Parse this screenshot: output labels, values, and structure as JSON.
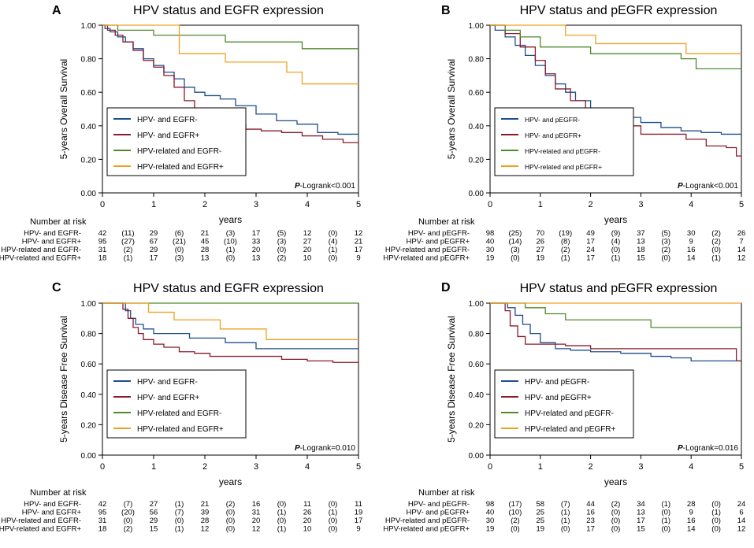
{
  "colors": {
    "hpv_neg_egfr_neg": "#1f4e8c",
    "hpv_neg_egfr_pos": "#8b1a2b",
    "hpv_rel_egfr_neg": "#4f8a2b",
    "hpv_rel_egfr_pos": "#f0a020"
  },
  "chart_data": [
    {
      "type": "line",
      "panel_letter": "A",
      "title": "HPV status and EGFR expression",
      "xlabel": "years",
      "ylabel": "5-years Overall Survival",
      "xlim": [
        0,
        5
      ],
      "ylim": [
        0,
        1
      ],
      "xticks": [
        "0",
        "1",
        "2",
        "3",
        "4",
        "5"
      ],
      "yticks": [
        "0.00",
        "0.20",
        "0.40",
        "0.60",
        "0.80",
        "1.00"
      ],
      "pvalue_prefix": "P",
      "pvalue_text": "-Logrank<0.001",
      "legend_placement": "bottom-left",
      "series": [
        {
          "name": "HPV- and EGFR-",
          "color_key": "hpv_neg_egfr_neg",
          "x": [
            0,
            0.05,
            0.15,
            0.3,
            0.45,
            0.6,
            0.8,
            1.0,
            1.2,
            1.4,
            1.6,
            1.8,
            2.0,
            2.3,
            2.6,
            3.0,
            3.4,
            3.8,
            4.2,
            4.6,
            5.0
          ],
          "y": [
            1.0,
            0.98,
            0.96,
            0.93,
            0.9,
            0.86,
            0.8,
            0.76,
            0.72,
            0.68,
            0.63,
            0.6,
            0.58,
            0.56,
            0.52,
            0.47,
            0.43,
            0.41,
            0.36,
            0.35,
            0.35
          ]
        },
        {
          "name": "HPV- and EGFR+",
          "color_key": "hpv_neg_egfr_pos",
          "x": [
            0,
            0.1,
            0.25,
            0.4,
            0.6,
            0.8,
            1.0,
            1.2,
            1.4,
            1.6,
            1.8,
            2.0,
            2.2,
            2.5,
            2.8,
            3.1,
            3.5,
            3.9,
            4.3,
            4.7,
            5.0
          ],
          "y": [
            1.0,
            0.97,
            0.94,
            0.9,
            0.85,
            0.79,
            0.75,
            0.7,
            0.63,
            0.55,
            0.5,
            0.47,
            0.45,
            0.41,
            0.38,
            0.37,
            0.36,
            0.34,
            0.32,
            0.3,
            0.29
          ]
        },
        {
          "name": "HPV-related and EGFR-",
          "color_key": "hpv_rel_egfr_neg",
          "x": [
            0,
            0.3,
            1.0,
            1.8,
            2.4,
            3.2,
            3.9,
            5.0
          ],
          "y": [
            1.0,
            0.97,
            0.94,
            0.94,
            0.9,
            0.9,
            0.86,
            0.86
          ]
        },
        {
          "name": "HPV-related and EGFR+",
          "color_key": "hpv_rel_egfr_pos",
          "x": [
            0,
            1.1,
            1.5,
            2.4,
            3.6,
            3.9,
            5.0
          ],
          "y": [
            1.0,
            1.0,
            0.83,
            0.78,
            0.72,
            0.65,
            0.65
          ]
        }
      ],
      "risk_table": {
        "header": "Number at risk",
        "rows": [
          {
            "label": "HPV- and EGFR-",
            "values": [
              "42",
              "(11)",
              "29",
              "(6)",
              "21",
              "(3)",
              "17",
              "(5)",
              "12",
              "(0)",
              "12"
            ]
          },
          {
            "label": "HPV- and EGFR+",
            "values": [
              "95",
              "(27)",
              "67",
              "(21)",
              "45",
              "(10)",
              "33",
              "(3)",
              "27",
              "(4)",
              "21"
            ]
          },
          {
            "label": "HPV-related and EGFR-",
            "values": [
              "31",
              "(2)",
              "29",
              "(0)",
              "28",
              "(1)",
              "20",
              "(0)",
              "20",
              "(1)",
              "17"
            ]
          },
          {
            "label": "HPV-related and EGFR+",
            "values": [
              "18",
              "(1)",
              "17",
              "(3)",
              "13",
              "(0)",
              "13",
              "(2)",
              "10",
              "(0)",
              "9"
            ]
          }
        ]
      }
    },
    {
      "type": "line",
      "panel_letter": "B",
      "title": "HPV status and pEGFR expression",
      "xlabel": "years",
      "ylabel": "5-years Overall Survival",
      "xlim": [
        0,
        5
      ],
      "ylim": [
        0,
        1
      ],
      "xticks": [
        "0",
        "1",
        "2",
        "3",
        "4",
        "5"
      ],
      "yticks": [
        "0.00",
        "0.20",
        "0.40",
        "0.60",
        "0.80",
        "1.00"
      ],
      "pvalue_prefix": "P",
      "pvalue_text": "-Logrank<0.001",
      "legend_placement": "bottom-left",
      "series": [
        {
          "name": "HPV- and pEGFR-",
          "color_key": "hpv_neg_egfr_neg",
          "x": [
            0,
            0.1,
            0.3,
            0.5,
            0.7,
            0.9,
            1.1,
            1.3,
            1.5,
            1.7,
            2.0,
            2.3,
            2.6,
            3.0,
            3.4,
            3.8,
            4.2,
            4.6,
            5.0
          ],
          "y": [
            1.0,
            0.97,
            0.93,
            0.88,
            0.82,
            0.76,
            0.7,
            0.65,
            0.6,
            0.55,
            0.5,
            0.47,
            0.45,
            0.42,
            0.39,
            0.37,
            0.36,
            0.35,
            0.35
          ]
        },
        {
          "name": "HPV- and pEGFR+",
          "color_key": "hpv_neg_egfr_pos",
          "x": [
            0,
            0.3,
            0.6,
            0.9,
            1.1,
            1.3,
            1.6,
            1.9,
            2.2,
            2.6,
            3.0,
            3.5,
            3.9,
            4.3,
            4.7,
            4.9,
            5.0
          ],
          "y": [
            1.0,
            0.95,
            0.87,
            0.79,
            0.71,
            0.62,
            0.55,
            0.45,
            0.43,
            0.4,
            0.35,
            0.35,
            0.32,
            0.28,
            0.27,
            0.22,
            0.2
          ]
        },
        {
          "name": "HPV-related and pEGFR-",
          "color_key": "hpv_rel_egfr_neg",
          "x": [
            0,
            0.3,
            0.6,
            1.0,
            1.6,
            2.0,
            3.0,
            3.8,
            4.1,
            5.0
          ],
          "y": [
            1.0,
            0.97,
            0.93,
            0.87,
            0.87,
            0.83,
            0.83,
            0.8,
            0.74,
            0.74
          ]
        },
        {
          "name": "HPV-related and pEGFR+",
          "color_key": "hpv_rel_egfr_pos",
          "x": [
            0,
            1.0,
            1.5,
            2.1,
            3.9,
            5.0
          ],
          "y": [
            1.0,
            1.0,
            0.94,
            0.89,
            0.83,
            0.83
          ]
        }
      ],
      "risk_table": {
        "header": "Number at risk",
        "rows": [
          {
            "label": "HPV- and pEGFR-",
            "values": [
              "98",
              "(25)",
              "70",
              "(19)",
              "49",
              "(9)",
              "37",
              "(5)",
              "30",
              "(2)",
              "26"
            ]
          },
          {
            "label": "HPV- and pEGFR+",
            "values": [
              "40",
              "(14)",
              "26",
              "(8)",
              "17",
              "(4)",
              "13",
              "(3)",
              "9",
              "(2)",
              "7"
            ]
          },
          {
            "label": "HPV-related and pEGFR-",
            "values": [
              "30",
              "(3)",
              "27",
              "(2)",
              "24",
              "(0)",
              "18",
              "(2)",
              "16",
              "(0)",
              "14"
            ]
          },
          {
            "label": "HPV-related and pEGFR+",
            "values": [
              "19",
              "(0)",
              "19",
              "(1)",
              "17",
              "(1)",
              "15",
              "(0)",
              "14",
              "(1)",
              "12"
            ]
          }
        ]
      }
    },
    {
      "type": "line",
      "panel_letter": "C",
      "title": "HPV status and EGFR expression",
      "xlabel": "years",
      "ylabel": "5-years Disease Free Survival",
      "xlim": [
        0,
        5
      ],
      "ylim": [
        0,
        1
      ],
      "xticks": [
        "0",
        "1",
        "2",
        "3",
        "4",
        "5"
      ],
      "yticks": [
        "0.00",
        "0.20",
        "0.40",
        "0.60",
        "0.80",
        "1.00"
      ],
      "pvalue_prefix": "P",
      "pvalue_text": "-Logrank=0.010",
      "legend_placement": "bottom-left",
      "series": [
        {
          "name": "HPV- and EGFR-",
          "color_key": "hpv_neg_egfr_neg",
          "x": [
            0,
            0.45,
            0.55,
            0.65,
            0.8,
            1.0,
            1.3,
            1.7,
            2.0,
            2.4,
            2.8,
            3.0,
            3.5,
            4.0,
            5.0
          ],
          "y": [
            1.0,
            0.95,
            0.9,
            0.86,
            0.83,
            0.8,
            0.8,
            0.77,
            0.77,
            0.74,
            0.74,
            0.7,
            0.7,
            0.7,
            0.7
          ]
        },
        {
          "name": "HPV- and EGFR+",
          "color_key": "hpv_neg_egfr_pos",
          "x": [
            0,
            0.4,
            0.5,
            0.6,
            0.7,
            0.8,
            1.0,
            1.2,
            1.5,
            1.8,
            2.1,
            2.5,
            3.0,
            3.5,
            4.0,
            4.5,
            5.0
          ],
          "y": [
            1.0,
            0.96,
            0.9,
            0.84,
            0.8,
            0.76,
            0.73,
            0.71,
            0.68,
            0.67,
            0.65,
            0.65,
            0.65,
            0.63,
            0.62,
            0.61,
            0.6
          ]
        },
        {
          "name": "HPV-related and EGFR-",
          "color_key": "hpv_rel_egfr_neg",
          "x": [
            0,
            5.0
          ],
          "y": [
            1.0,
            1.0
          ]
        },
        {
          "name": "HPV-related and EGFR+",
          "color_key": "hpv_rel_egfr_pos",
          "x": [
            0,
            0.5,
            0.9,
            1.4,
            2.3,
            3.2,
            5.0
          ],
          "y": [
            1.0,
            1.0,
            0.94,
            0.89,
            0.83,
            0.76,
            0.76
          ]
        }
      ],
      "risk_table": {
        "header": "Number at risk",
        "rows": [
          {
            "label": "HPV- and EGFR-",
            "values": [
              "42",
              "(7)",
              "27",
              "(1)",
              "21",
              "(2)",
              "16",
              "(0)",
              "11",
              "(0)",
              "11"
            ]
          },
          {
            "label": "HPV- and EGFR+",
            "values": [
              "95",
              "(20)",
              "56",
              "(7)",
              "39",
              "(0)",
              "31",
              "(1)",
              "26",
              "(1)",
              "19"
            ]
          },
          {
            "label": "HPV-related and EGFR-",
            "values": [
              "31",
              "(0)",
              "29",
              "(0)",
              "28",
              "(0)",
              "20",
              "(0)",
              "20",
              "(0)",
              "17"
            ]
          },
          {
            "label": "HPV-related and EGFR+",
            "values": [
              "18",
              "(2)",
              "15",
              "(1)",
              "12",
              "(0)",
              "12",
              "(1)",
              "10",
              "(0)",
              "9"
            ]
          }
        ]
      }
    },
    {
      "type": "line",
      "panel_letter": "D",
      "title": "HPV status and pEGFR expression",
      "xlabel": "years",
      "ylabel": "5-years Disease Free Survival",
      "xlim": [
        0,
        5
      ],
      "ylim": [
        0,
        1
      ],
      "xticks": [
        "0",
        "1",
        "2",
        "3",
        "4",
        "5"
      ],
      "yticks": [
        "0.00",
        "0.20",
        "0.40",
        "0.60",
        "0.80",
        "1.00"
      ],
      "pvalue_prefix": "P",
      "pvalue_text": "-Logrank=0.016",
      "legend_placement": "bottom-left",
      "series": [
        {
          "name": "HPV- and pEGFR-",
          "color_key": "hpv_neg_egfr_neg",
          "x": [
            0,
            0.35,
            0.5,
            0.65,
            0.8,
            1.0,
            1.3,
            1.6,
            2.0,
            2.6,
            3.2,
            3.6,
            4.0,
            4.5,
            5.0
          ],
          "y": [
            1.0,
            0.97,
            0.92,
            0.86,
            0.8,
            0.74,
            0.7,
            0.69,
            0.68,
            0.67,
            0.65,
            0.64,
            0.62,
            0.62,
            0.62
          ]
        },
        {
          "name": "HPV- and pEGFR+",
          "color_key": "hpv_neg_egfr_pos",
          "x": [
            0,
            0.3,
            0.4,
            0.55,
            0.7,
            1.0,
            1.5,
            2.0,
            3.0,
            4.0,
            4.9,
            5.0
          ],
          "y": [
            1.0,
            0.95,
            0.85,
            0.78,
            0.73,
            0.73,
            0.72,
            0.7,
            0.7,
            0.7,
            0.62,
            0.62
          ]
        },
        {
          "name": "HPV-related and pEGFR-",
          "color_key": "hpv_rel_egfr_neg",
          "x": [
            0,
            0.5,
            0.7,
            1.1,
            1.5,
            3.0,
            3.2,
            5.0
          ],
          "y": [
            1.0,
            1.0,
            0.97,
            0.93,
            0.89,
            0.89,
            0.84,
            0.84
          ]
        },
        {
          "name": "HPV-related and pEGFR+",
          "color_key": "hpv_rel_egfr_pos",
          "x": [
            0,
            5.0
          ],
          "y": [
            1.0,
            1.0
          ]
        }
      ],
      "risk_table": {
        "header": "Number at risk",
        "rows": [
          {
            "label": "HPV- and pEGFR-",
            "values": [
              "98",
              "(17)",
              "58",
              "(7)",
              "44",
              "(2)",
              "34",
              "(1)",
              "28",
              "(0)",
              "24"
            ]
          },
          {
            "label": "HPV- and pEGFR+",
            "values": [
              "40",
              "(10)",
              "25",
              "(1)",
              "16",
              "(0)",
              "13",
              "(0)",
              "9",
              "(1)",
              "6"
            ]
          },
          {
            "label": "HPV-related and pEGFR-",
            "values": [
              "30",
              "(2)",
              "25",
              "(1)",
              "23",
              "(0)",
              "17",
              "(1)",
              "16",
              "(0)",
              "14"
            ]
          },
          {
            "label": "HPV-related and pEGFR+",
            "values": [
              "19",
              "(0)",
              "19",
              "(0)",
              "17",
              "(0)",
              "15",
              "(0)",
              "14",
              "(0)",
              "12"
            ]
          }
        ]
      }
    }
  ]
}
